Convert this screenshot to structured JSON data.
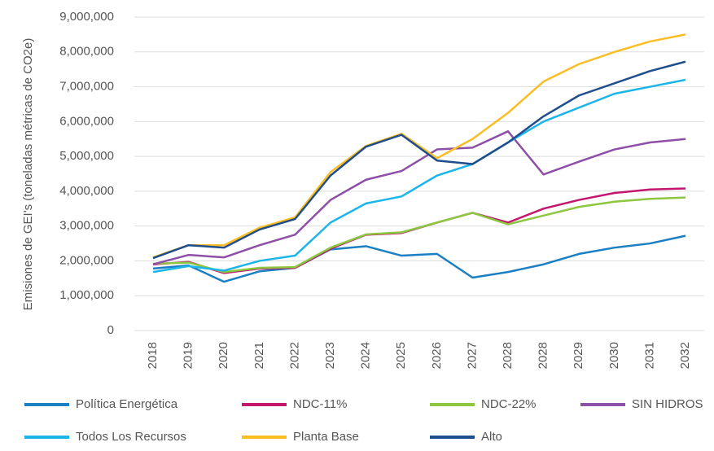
{
  "chart_data": {
    "type": "line",
    "y_label": "Emisiones de GEI's (toneladas métricas de CO2e)",
    "categories": [
      "2018",
      "2019",
      "2020",
      "2021",
      "2022",
      "2023",
      "2024",
      "2025",
      "2026",
      "2027",
      "2028",
      "2028",
      "2029",
      "2030",
      "2031",
      "2032"
    ],
    "ylim": [
      0,
      9000000
    ],
    "yticks": [
      0,
      {
        "value": 1000000,
        "label": "1,000,000"
      },
      {
        "value": 2000000,
        "label": "2,000,000"
      },
      {
        "value": 3000000,
        "label": "3,000,000"
      },
      {
        "value": 4000000,
        "label": "4,000,000"
      },
      {
        "value": 5000000,
        "label": "5,000,000"
      },
      {
        "value": 6000000,
        "label": "6,000,000"
      },
      {
        "value": 7000000,
        "label": "7,000,000"
      },
      {
        "value": 8000000,
        "label": "8,000,000"
      },
      {
        "value": 9000000,
        "label": "9,000,000"
      }
    ],
    "grid": true,
    "series": [
      {
        "name": "Política Energética",
        "color": "#1b7fc3",
        "values": [
          1780000,
          1870000,
          1400000,
          1700000,
          1800000,
          2330000,
          2420000,
          2150000,
          2200000,
          1520000,
          1680000,
          1900000,
          2200000,
          2380000,
          2500000,
          2720000
        ]
      },
      {
        "name": "NDC-11%",
        "color": "#c2166f",
        "values": [
          1900000,
          1970000,
          1650000,
          1780000,
          1800000,
          2350000,
          2750000,
          2800000,
          3100000,
          3380000,
          3100000,
          3500000,
          3750000,
          3950000,
          4050000,
          4080000
        ]
      },
      {
        "name": "NDC-22%",
        "color": "#8dc63f",
        "values": [
          1920000,
          1950000,
          1680000,
          1800000,
          1820000,
          2380000,
          2760000,
          2820000,
          3100000,
          3380000,
          3050000,
          3300000,
          3550000,
          3700000,
          3780000,
          3820000
        ]
      },
      {
        "name": "SIN HIDROS",
        "color": "#8e4fa8",
        "values": [
          1900000,
          2170000,
          2100000,
          2450000,
          2750000,
          3750000,
          4330000,
          4580000,
          5200000,
          5250000,
          5720000,
          4480000,
          4850000,
          5200000,
          5400000,
          5500000
        ]
      },
      {
        "name": "Todos Los Recursos",
        "color": "#1cb5ea",
        "values": [
          1680000,
          1850000,
          1720000,
          2000000,
          2150000,
          3100000,
          3650000,
          3850000,
          4450000,
          4780000,
          5400000,
          6000000,
          6400000,
          6800000,
          7000000,
          7200000
        ]
      },
      {
        "name": "Planta Base",
        "color": "#fbbd24",
        "values": [
          2100000,
          2450000,
          2450000,
          2950000,
          3250000,
          4550000,
          5300000,
          5650000,
          4950000,
          5500000,
          6250000,
          7150000,
          7650000,
          8000000,
          8300000,
          8500000
        ]
      },
      {
        "name": "Alto",
        "color": "#1f4e8c",
        "values": [
          2080000,
          2450000,
          2380000,
          2900000,
          3200000,
          4450000,
          5280000,
          5620000,
          4880000,
          4780000,
          5400000,
          6150000,
          6750000,
          7100000,
          7450000,
          7720000
        ]
      }
    ]
  }
}
